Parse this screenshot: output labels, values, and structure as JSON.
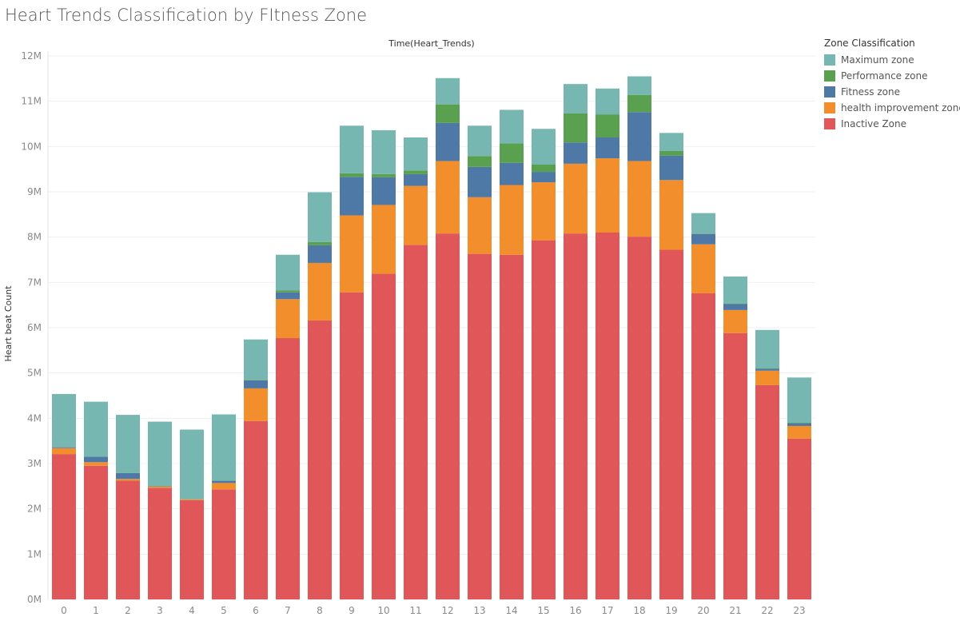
{
  "title": "Heart Trends Classification by FItness Zone",
  "legend": {
    "title": "Zone Classification",
    "items": [
      {
        "label": "Maximum zone",
        "color": "#76b7b2"
      },
      {
        "label": "Performance zone",
        "color": "#59a14f"
      },
      {
        "label": "Fitness zone",
        "color": "#4e79a7"
      },
      {
        "label": "health improvement zone",
        "color": "#f28e2b"
      },
      {
        "label": "Inactive Zone",
        "color": "#e15759"
      }
    ]
  },
  "chart_data": {
    "type": "bar",
    "stacked": true,
    "title": "Heart Trends Classification by FItness Zone",
    "column_header": "Time(Heart_Trends)",
    "xlabel": "",
    "ylabel": "Heart beat Count",
    "categories": [
      "0",
      "1",
      "2",
      "3",
      "4",
      "5",
      "6",
      "7",
      "8",
      "9",
      "10",
      "11",
      "12",
      "13",
      "14",
      "15",
      "16",
      "17",
      "18",
      "19",
      "20",
      "21",
      "22",
      "23"
    ],
    "ylim": [
      0,
      12000000
    ],
    "yticks": [
      {
        "value": 0,
        "label": "0M"
      },
      {
        "value": 1000000,
        "label": "1M"
      },
      {
        "value": 2000000,
        "label": "2M"
      },
      {
        "value": 3000000,
        "label": "3M"
      },
      {
        "value": 4000000,
        "label": "4M"
      },
      {
        "value": 5000000,
        "label": "5M"
      },
      {
        "value": 6000000,
        "label": "6M"
      },
      {
        "value": 7000000,
        "label": "7M"
      },
      {
        "value": 8000000,
        "label": "8M"
      },
      {
        "value": 9000000,
        "label": "9M"
      },
      {
        "value": 10000000,
        "label": "10M"
      },
      {
        "value": 11000000,
        "label": "11M"
      },
      {
        "value": 12000000,
        "label": "12M"
      }
    ],
    "grid": true,
    "legend_position": "right",
    "series": [
      {
        "name": "Inactive Zone",
        "color": "#e15759",
        "values": [
          3210000,
          2950000,
          2620000,
          2460000,
          2190000,
          2430000,
          3940000,
          5770000,
          6160000,
          6780000,
          7190000,
          7830000,
          8080000,
          7630000,
          7610000,
          7930000,
          8080000,
          8100000,
          8010000,
          7720000,
          6760000,
          5880000,
          4730000,
          3550000
        ]
      },
      {
        "name": "health improvement zone",
        "color": "#f28e2b",
        "values": [
          130000,
          80000,
          40000,
          30000,
          20000,
          140000,
          720000,
          860000,
          1270000,
          1700000,
          1520000,
          1300000,
          1600000,
          1250000,
          1540000,
          1280000,
          1540000,
          1640000,
          1670000,
          1540000,
          1080000,
          510000,
          320000,
          280000
        ]
      },
      {
        "name": "Fitness zone",
        "color": "#4e79a7",
        "values": [
          20000,
          120000,
          130000,
          10000,
          5000,
          50000,
          180000,
          150000,
          390000,
          850000,
          610000,
          260000,
          840000,
          670000,
          490000,
          230000,
          470000,
          460000,
          1080000,
          540000,
          230000,
          130000,
          40000,
          60000
        ]
      },
      {
        "name": "Performance zone",
        "color": "#59a14f",
        "values": [
          5000,
          5000,
          5000,
          5000,
          5000,
          5000,
          10000,
          40000,
          70000,
          80000,
          70000,
          80000,
          410000,
          240000,
          430000,
          160000,
          640000,
          510000,
          380000,
          100000,
          10000,
          10000,
          10000,
          10000
        ]
      },
      {
        "name": "Maximum zone",
        "color": "#76b7b2",
        "values": [
          1170000,
          1210000,
          1280000,
          1420000,
          1530000,
          1460000,
          890000,
          790000,
          1100000,
          1050000,
          970000,
          730000,
          580000,
          670000,
          740000,
          790000,
          650000,
          570000,
          410000,
          400000,
          450000,
          600000,
          850000,
          1000000
        ]
      }
    ]
  }
}
